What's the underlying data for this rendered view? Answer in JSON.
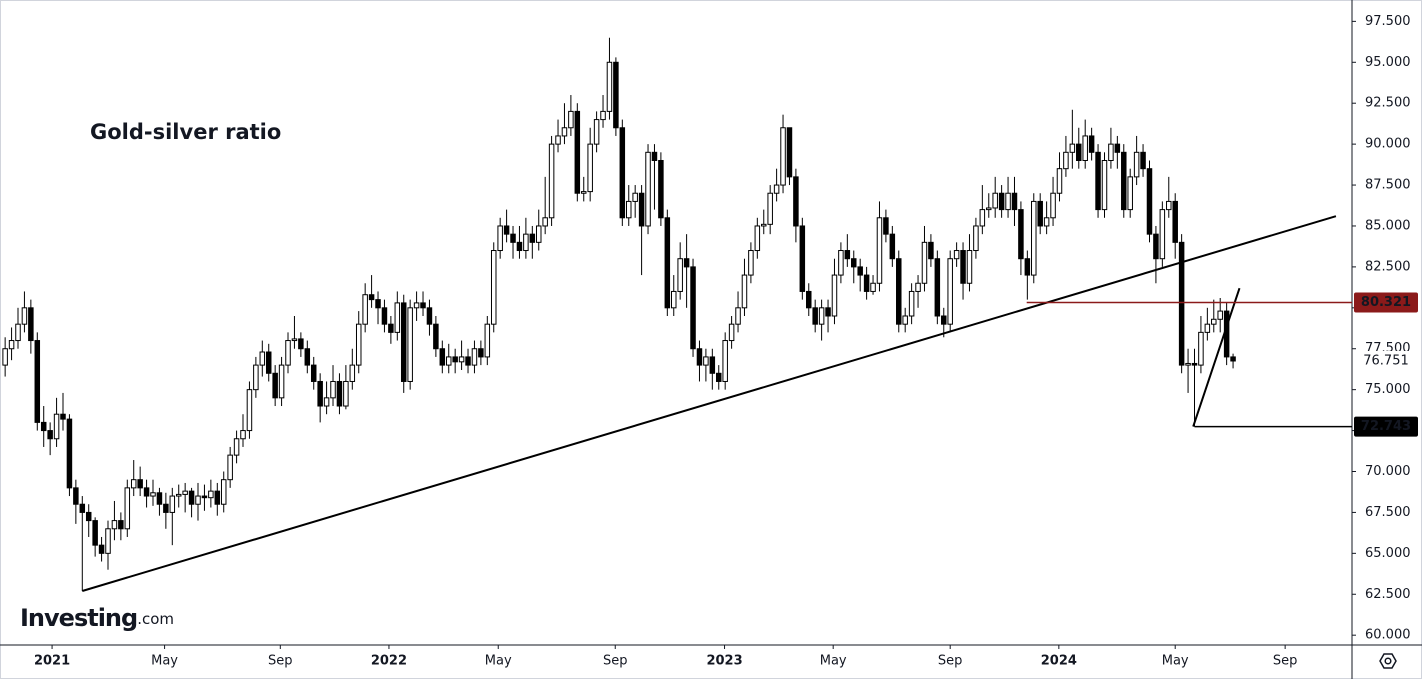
{
  "chart_data": {
    "type": "candlestick",
    "title": "Gold-silver ratio",
    "logo": {
      "name": "Investing",
      "suffix": ".com"
    },
    "up_color": "#ffffff",
    "down_color": "#000000",
    "xlim": [
      -0.8,
      209.5
    ],
    "ylim": [
      59.4,
      98.5
    ],
    "yticks": [
      {
        "value": 60,
        "label": "60.000"
      },
      {
        "value": 62.5,
        "label": "62.500"
      },
      {
        "value": 65,
        "label": "65.000"
      },
      {
        "value": 67.5,
        "label": "67.500"
      },
      {
        "value": 70,
        "label": "70.000"
      },
      {
        "value": 72.5,
        "label": "72.500"
      },
      {
        "value": 75,
        "label": "75.000"
      },
      {
        "value": 77.5,
        "label": "77.500"
      },
      {
        "value": 80,
        "label": "80.000"
      },
      {
        "value": 82.5,
        "label": "82.500"
      },
      {
        "value": 85,
        "label": "85.000"
      },
      {
        "value": 87.5,
        "label": "87.500"
      },
      {
        "value": 90,
        "label": "90.000"
      },
      {
        "value": 92.5,
        "label": "92.500"
      },
      {
        "value": 95,
        "label": "95.000"
      },
      {
        "value": 97.5,
        "label": "97.500"
      }
    ],
    "xticks": [
      {
        "value": 7.3,
        "label": "2021"
      },
      {
        "value": 24.8,
        "label": "May"
      },
      {
        "value": 42.8,
        "label": "Sep"
      },
      {
        "value": 59.7,
        "label": "2022"
      },
      {
        "value": 76.7,
        "label": "May"
      },
      {
        "value": 94.9,
        "label": "Sep"
      },
      {
        "value": 111.9,
        "label": "2023"
      },
      {
        "value": 128.8,
        "label": "May"
      },
      {
        "value": 147.0,
        "label": "Sep"
      },
      {
        "value": 163.9,
        "label": "2024"
      },
      {
        "value": 182.0,
        "label": "May"
      },
      {
        "value": 199.1,
        "label": "Sep"
      }
    ],
    "trendlines": [
      {
        "x": [
          12,
          207
        ],
        "y": [
          62.7,
          85.6
        ],
        "color": "#000000"
      },
      {
        "x": [
          184.8,
          192
        ],
        "y": [
          72.743,
          81.2
        ],
        "color": "#000000"
      }
    ],
    "levels": [
      {
        "value": 80.321,
        "start": 158.9,
        "color": "#8b1a1a"
      },
      {
        "value": 72.743,
        "start": 185,
        "color": "#000000"
      }
    ],
    "last_price": 76.751,
    "candles": [
      [
        76.5,
        78.2,
        75.8,
        77.5
      ],
      [
        77.5,
        78.8,
        76.8,
        78
      ],
      [
        78,
        80,
        77.5,
        79
      ],
      [
        79,
        81,
        78.5,
        80
      ],
      [
        80,
        80.5,
        77.2,
        78
      ],
      [
        78,
        78.5,
        72.5,
        73
      ],
      [
        73,
        74,
        71.5,
        72.5
      ],
      [
        72.5,
        73,
        71,
        72
      ],
      [
        72,
        74.5,
        71.5,
        73.5
      ],
      [
        73.5,
        74.8,
        72.5,
        73.2
      ],
      [
        73.2,
        73.5,
        68.5,
        69
      ],
      [
        69,
        69.5,
        66.8,
        68
      ],
      [
        68,
        68.5,
        62.7,
        67.5
      ],
      [
        67.5,
        68,
        66,
        67
      ],
      [
        67,
        67.2,
        64.8,
        65.5
      ],
      [
        65.5,
        66,
        64.5,
        65
      ],
      [
        65,
        67,
        64,
        66.5
      ],
      [
        66.5,
        68.2,
        65.8,
        67
      ],
      [
        67,
        67.5,
        65.8,
        66.5
      ],
      [
        66.5,
        69.5,
        66,
        69
      ],
      [
        69,
        70.7,
        68.5,
        69.5
      ],
      [
        69.5,
        70.3,
        68.5,
        69
      ],
      [
        69,
        69.5,
        67.8,
        68.5
      ],
      [
        68.5,
        69.5,
        67.9,
        68.7
      ],
      [
        68.7,
        69,
        67.3,
        68
      ],
      [
        68,
        68.7,
        66.5,
        67.5
      ],
      [
        67.5,
        69,
        65.5,
        68.5
      ],
      [
        68.5,
        69.2,
        67.8,
        68.6
      ],
      [
        68.6,
        69.3,
        67.5,
        68.8
      ],
      [
        68.8,
        69,
        67.2,
        68
      ],
      [
        68,
        69.3,
        67,
        68.5
      ],
      [
        68.5,
        69.2,
        67.6,
        68.4
      ],
      [
        68.4,
        69.5,
        67.8,
        68.8
      ],
      [
        68.8,
        69.3,
        67.3,
        68
      ],
      [
        68,
        70,
        67.5,
        69.5
      ],
      [
        69.5,
        71.5,
        69,
        71
      ],
      [
        71,
        72.5,
        70.5,
        72
      ],
      [
        72,
        73.5,
        71.5,
        72.5
      ],
      [
        72.5,
        75.5,
        72,
        75
      ],
      [
        75,
        77,
        74.5,
        76.5
      ],
      [
        76.5,
        78,
        75.8,
        77.3
      ],
      [
        77.3,
        77.8,
        75.5,
        76
      ],
      [
        76,
        76.5,
        74,
        74.5
      ],
      [
        74.5,
        77,
        74,
        76.5
      ],
      [
        76.5,
        78.5,
        76,
        78
      ],
      [
        78,
        79.5,
        77.5,
        78.1
      ],
      [
        78.1,
        78.5,
        77,
        77.5
      ],
      [
        77.5,
        78,
        76,
        76.5
      ],
      [
        76.5,
        77,
        75,
        75.5
      ],
      [
        75.5,
        76,
        73,
        74
      ],
      [
        74,
        75.5,
        73.5,
        74.5
      ],
      [
        74.5,
        76.5,
        74,
        75.5
      ],
      [
        75.5,
        76,
        73.5,
        74
      ],
      [
        74,
        76.5,
        73.8,
        75.5
      ],
      [
        75.5,
        77.5,
        75,
        76.5
      ],
      [
        76.5,
        79.8,
        76,
        79
      ],
      [
        79,
        81.5,
        78.5,
        80.8
      ],
      [
        80.8,
        82,
        80,
        80.5
      ],
      [
        80.5,
        81,
        79,
        80
      ],
      [
        80,
        80.5,
        78.5,
        79
      ],
      [
        79,
        79.5,
        77.8,
        78.5
      ],
      [
        78.5,
        81,
        78,
        80.3
      ],
      [
        80.3,
        80.8,
        74.8,
        75.5
      ],
      [
        75.5,
        80.5,
        75,
        80
      ],
      [
        80,
        81,
        79.2,
        80.3
      ],
      [
        80.3,
        81,
        79.5,
        80
      ],
      [
        80,
        80.5,
        78.3,
        79
      ],
      [
        79,
        79.5,
        77,
        77.5
      ],
      [
        77.5,
        78,
        76,
        76.5
      ],
      [
        76.5,
        77.8,
        76,
        77
      ],
      [
        77,
        77.5,
        76,
        76.7
      ],
      [
        76.7,
        78,
        76.2,
        77
      ],
      [
        77,
        77.5,
        76,
        76.5
      ],
      [
        76.5,
        78,
        76,
        77.5
      ],
      [
        77.5,
        78,
        76.5,
        77
      ],
      [
        77,
        79.5,
        76.5,
        79
      ],
      [
        79,
        84,
        78.5,
        83.5
      ],
      [
        83.5,
        85.5,
        83,
        85
      ],
      [
        85,
        86,
        84,
        84.5
      ],
      [
        84.5,
        85,
        83,
        84
      ],
      [
        84,
        85,
        83,
        83.5
      ],
      [
        83.5,
        85.5,
        83,
        84.5
      ],
      [
        84.5,
        85,
        83,
        84
      ],
      [
        84,
        86,
        83.5,
        85
      ],
      [
        85,
        88,
        84.5,
        85.5
      ],
      [
        85.5,
        90.5,
        85,
        90
      ],
      [
        90,
        91.5,
        89.5,
        90.5
      ],
      [
        90.5,
        92.5,
        90,
        91
      ],
      [
        91,
        93,
        90.5,
        92
      ],
      [
        92,
        92.5,
        86.5,
        87
      ],
      [
        87,
        88,
        86.5,
        87.1
      ],
      [
        87.1,
        91,
        86.5,
        90
      ],
      [
        90,
        92,
        89.5,
        91.5
      ],
      [
        91.5,
        93,
        91,
        92
      ],
      [
        92,
        96.5,
        91.5,
        95
      ],
      [
        95,
        95.3,
        90.5,
        91
      ],
      [
        91,
        91.5,
        85,
        85.5
      ],
      [
        85.5,
        87.5,
        85,
        86.5
      ],
      [
        86.5,
        87.5,
        85.5,
        87
      ],
      [
        87,
        87.5,
        82,
        85
      ],
      [
        85,
        90,
        84.5,
        89.5
      ],
      [
        89.5,
        90,
        86,
        89
      ],
      [
        89,
        89.5,
        85,
        85.5
      ],
      [
        85.5,
        86,
        79.5,
        80
      ],
      [
        80,
        82,
        79.5,
        81
      ],
      [
        81,
        84,
        80.5,
        83
      ],
      [
        83,
        84.5,
        80,
        82.5
      ],
      [
        82.5,
        83,
        77,
        77.5
      ],
      [
        77.5,
        78,
        75.5,
        76.5
      ],
      [
        76.5,
        77.5,
        75.5,
        77
      ],
      [
        77,
        77.5,
        75,
        76
      ],
      [
        76,
        76.5,
        75,
        75.5
      ],
      [
        75.5,
        78.5,
        75,
        78
      ],
      [
        78,
        79.5,
        77.5,
        79
      ],
      [
        79,
        81,
        78.5,
        80
      ],
      [
        80,
        83,
        79.5,
        82
      ],
      [
        82,
        84,
        81.5,
        83.5
      ],
      [
        83.5,
        85.5,
        83,
        85
      ],
      [
        85,
        86,
        84.5,
        85.1
      ],
      [
        85.1,
        87.5,
        84.5,
        87
      ],
      [
        87,
        88.5,
        86.5,
        87.5
      ],
      [
        87.5,
        91.8,
        87,
        91
      ],
      [
        91,
        91,
        87.5,
        88
      ],
      [
        88,
        88.5,
        84,
        85
      ],
      [
        85,
        85.5,
        80.5,
        81
      ],
      [
        81,
        81.5,
        79.5,
        80
      ],
      [
        80,
        80.5,
        78.5,
        79
      ],
      [
        79,
        80.5,
        78,
        80
      ],
      [
        80,
        80.5,
        78.5,
        79.5
      ],
      [
        79.5,
        83,
        79,
        82
      ],
      [
        82,
        84,
        81.5,
        83.5
      ],
      [
        83.5,
        84.5,
        82.5,
        83
      ],
      [
        83,
        83.5,
        81.5,
        82.5
      ],
      [
        82.5,
        83,
        81,
        82
      ],
      [
        82,
        82.5,
        80.5,
        81
      ],
      [
        81,
        82,
        80.8,
        81.5
      ],
      [
        81.5,
        86.5,
        81,
        85.5
      ],
      [
        85.5,
        86,
        84,
        84.5
      ],
      [
        84.5,
        85,
        82.5,
        83
      ],
      [
        83,
        83.5,
        78.5,
        79
      ],
      [
        79,
        80,
        78.5,
        79.5
      ],
      [
        79.5,
        81.5,
        79,
        81
      ],
      [
        81,
        82,
        80,
        81.5
      ],
      [
        81.5,
        85,
        81,
        84
      ],
      [
        84,
        84.5,
        82.5,
        83
      ],
      [
        83,
        83.5,
        79,
        79.5
      ],
      [
        79.5,
        80,
        78.2,
        79
      ],
      [
        79,
        83.5,
        78.5,
        83
      ],
      [
        83,
        84,
        82.5,
        83.5
      ],
      [
        83.5,
        84,
        80.5,
        81.5
      ],
      [
        81.5,
        84.5,
        81,
        83.5
      ],
      [
        83.5,
        85.5,
        83,
        85
      ],
      [
        85,
        87.5,
        84.5,
        86
      ],
      [
        86,
        87,
        85.5,
        86.1
      ],
      [
        86.1,
        88,
        85.5,
        87
      ],
      [
        87,
        87.5,
        85.5,
        86
      ],
      [
        86,
        88,
        85.5,
        87
      ],
      [
        87,
        88,
        85,
        86
      ],
      [
        86,
        86.5,
        82,
        83
      ],
      [
        83,
        83.5,
        80.5,
        82
      ],
      [
        82,
        87,
        81.5,
        86.5
      ],
      [
        86.5,
        87,
        84.5,
        85
      ],
      [
        85,
        86.5,
        84.5,
        85.5
      ],
      [
        85.5,
        88,
        85,
        87
      ],
      [
        87,
        89.5,
        86.5,
        88.5
      ],
      [
        88.5,
        90.5,
        88,
        89.5
      ],
      [
        89.5,
        92.1,
        88.5,
        90
      ],
      [
        90,
        91,
        88.5,
        89
      ],
      [
        89,
        91.5,
        88.5,
        90.5
      ],
      [
        90.5,
        91,
        89,
        89.5
      ],
      [
        89.5,
        90,
        85.5,
        86
      ],
      [
        86,
        89.5,
        85.5,
        89
      ],
      [
        89,
        91,
        88.5,
        90
      ],
      [
        90,
        90.5,
        88.5,
        89.5
      ],
      [
        89.5,
        90,
        85.5,
        86
      ],
      [
        86,
        88.5,
        85.5,
        88
      ],
      [
        88,
        90.5,
        87.5,
        89.5
      ],
      [
        89.5,
        90,
        88,
        88.5
      ],
      [
        88.5,
        89,
        84,
        84.5
      ],
      [
        84.5,
        85,
        81.5,
        83
      ],
      [
        83,
        86.5,
        82.5,
        86
      ],
      [
        86,
        88,
        85.5,
        86.5
      ],
      [
        86.5,
        87,
        83,
        84
      ],
      [
        84,
        84.5,
        76,
        76.5
      ],
      [
        76.5,
        77.5,
        74.8,
        76.6
      ],
      [
        76.6,
        77.5,
        72.743,
        76.5
      ],
      [
        76.5,
        79.5,
        76,
        78.5
      ],
      [
        78.5,
        80,
        78,
        79
      ],
      [
        79,
        80.5,
        78.5,
        79.3
      ],
      [
        79.3,
        80.6,
        78.5,
        79.8
      ],
      [
        79.8,
        80.3,
        76.5,
        77
      ],
      [
        77,
        77.2,
        76.3,
        76.751
      ]
    ]
  }
}
